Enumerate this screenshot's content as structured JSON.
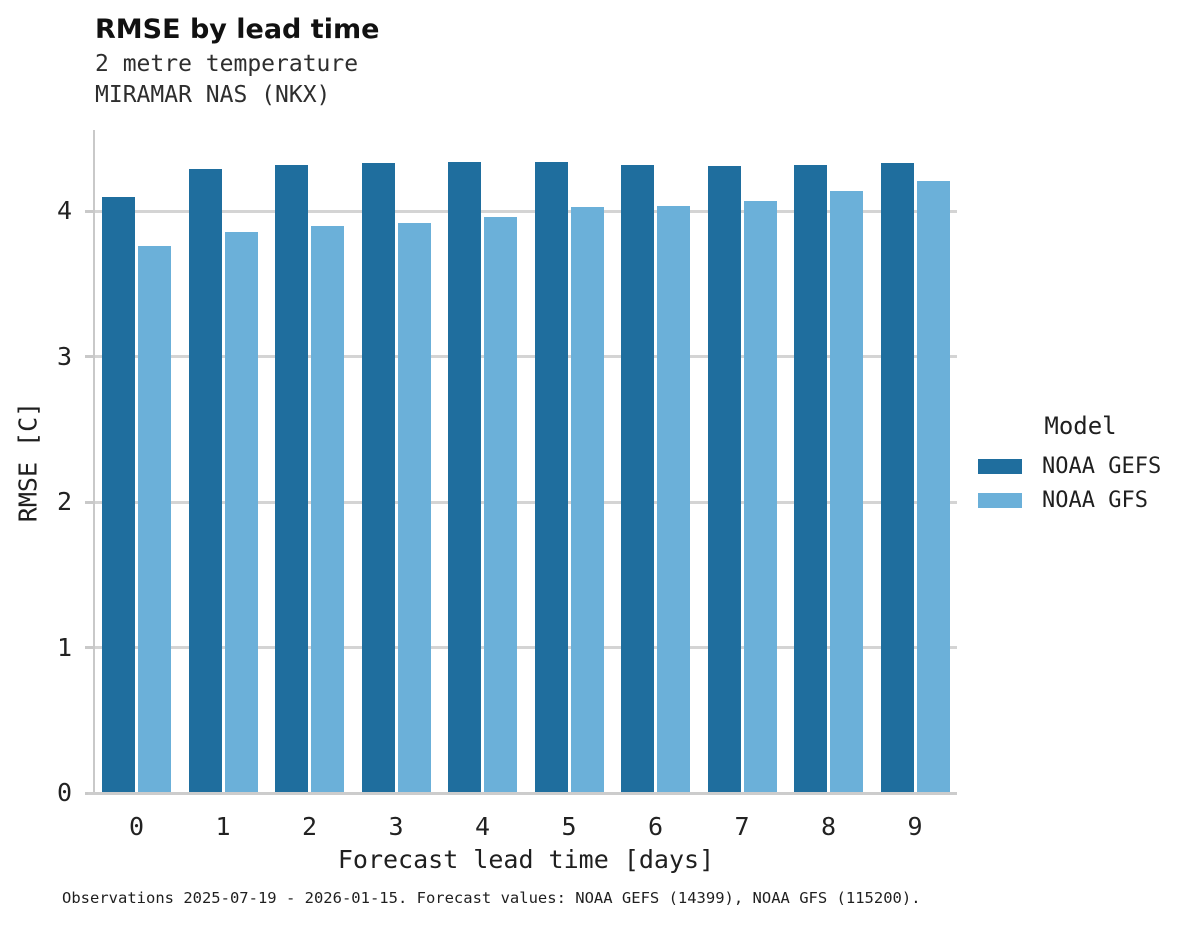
{
  "chart_data": {
    "type": "bar",
    "title": "RMSE by lead time",
    "subtitle_lines": [
      "2 metre temperature",
      "MIRAMAR NAS (NKX)"
    ],
    "xlabel": "Forecast lead time [days]",
    "ylabel": "RMSE [C]",
    "categories": [
      "0",
      "1",
      "2",
      "3",
      "4",
      "5",
      "6",
      "7",
      "8",
      "9"
    ],
    "series": [
      {
        "name": "NOAA GEFS",
        "color": "#1f6e9e",
        "values": [
          4.1,
          4.29,
          4.32,
          4.33,
          4.34,
          4.34,
          4.32,
          4.31,
          4.32,
          4.33
        ]
      },
      {
        "name": "NOAA GFS",
        "color": "#6bb0d9",
        "values": [
          3.76,
          3.86,
          3.9,
          3.92,
          3.96,
          4.03,
          4.04,
          4.07,
          4.14,
          4.21
        ]
      }
    ],
    "ylim": [
      0,
      4.56
    ],
    "yticks": [
      0,
      1,
      2,
      3,
      4
    ],
    "grid": "horizontal",
    "legend_title": "Model",
    "legend_position": "right",
    "caption": "Observations 2025-07-19 - 2026-01-15. Forecast values: NOAA GEFS (14399), NOAA GFS (115200)."
  },
  "style_colors": {
    "gridline": "#d4d4d4",
    "axis_line": "#c9c9c9"
  }
}
